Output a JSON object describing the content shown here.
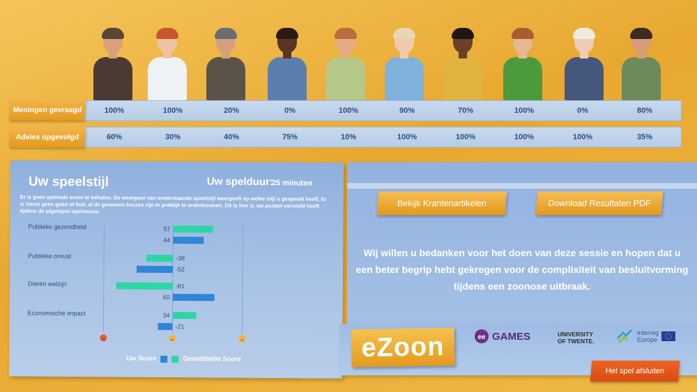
{
  "table": {
    "row1_label": "Meningen gevraagd",
    "row2_label": "Advies opgevolgd",
    "opinions": [
      "100%",
      "100%",
      "20%",
      "0%",
      "100%",
      "90%",
      "70%",
      "100%",
      "0%",
      "80%"
    ],
    "advice": [
      "60%",
      "30%",
      "40%",
      "75%",
      "10%",
      "100%",
      "100%",
      "100%",
      "100%",
      "35%"
    ]
  },
  "characters": [
    {
      "name": "character-politician",
      "skin": "#d9a07a",
      "hair": "#5a4636",
      "top": "#4a3a33"
    },
    {
      "name": "character-doctor",
      "skin": "#f0c2a4",
      "hair": "#c9552e",
      "top": "#eef2f4"
    },
    {
      "name": "character-farmer-chicken",
      "skin": "#d7a07c",
      "hair": "#6b6d72",
      "top": "#5c5348"
    },
    {
      "name": "character-woman-denim",
      "skin": "#5a3425",
      "hair": "#2a1a14",
      "top": "#5a7fae"
    },
    {
      "name": "character-man-green-jacket",
      "skin": "#e2ac84",
      "hair": "#b96d3a",
      "top": "#b6c98a"
    },
    {
      "name": "character-woman-blue-sweater",
      "skin": "#f1c9ae",
      "hair": "#e8d5b2",
      "top": "#7fb1dc"
    },
    {
      "name": "character-farmer-overalls",
      "skin": "#6b4028",
      "hair": "#1f1712",
      "top": "#e0b440"
    },
    {
      "name": "character-man-green-sweater",
      "skin": "#e6b894",
      "hair": "#a85e32",
      "top": "#4d9a3c"
    },
    {
      "name": "character-woman-blazer",
      "skin": "#efcbb3",
      "hair": "#eeeae0",
      "top": "#46577c"
    },
    {
      "name": "character-man-beard",
      "skin": "#d59e77",
      "hair": "#3b2b20",
      "top": "#6e8a5a"
    }
  ],
  "playstyle": {
    "title": "Uw speelstijl",
    "duration_label": "Uw spelduur:",
    "duration_value": "25 minuten",
    "description": "Er is geen optimale score te behalen. De weergave van onderstaande speelstijl weergeeft op welke stijl u gespeeld heeft. Er is hierin geen goed of fout, al de genomen keuzes zijn in praktijk te onderbouwen. Dit is hoe U, uw punten verveeld heeft tijdens de afgelopen spelsessie:"
  },
  "chart_data": {
    "type": "bar",
    "orientation": "horizontal",
    "categories": [
      "Publieke gezondheid",
      "Publieke onrust",
      "Dieren welzijn",
      "Economische impact"
    ],
    "series": [
      {
        "name": "Gemiddelde Score",
        "values": [
          57,
          -38,
          -81,
          34
        ],
        "color": "#2ed6a6"
      },
      {
        "name": "Uw Score",
        "values": [
          44,
          -52,
          60,
          -21
        ],
        "color": "#2f86d6"
      }
    ],
    "xlim": [
      -100,
      100
    ],
    "axis_markers": [
      "negative-face-icon",
      "neutral-face-icon",
      "positive-face-icon"
    ],
    "legend_order": [
      "Uw Score",
      "Gemiddelde Score"
    ]
  },
  "actions": {
    "news_button": "Bekijk Krantenartikelen",
    "download_button": "Download Resultaten PDF",
    "thanks": "Wij willen u bedanken voor het doen van deze sessie en hopen dat u een beter begrip hebt gekregen voor de complixiteit van besluitvorming tijdens een zoonose uitbraak.",
    "exit_button": "Het spel afsluiten"
  },
  "logos": {
    "ezoon": "eZoon",
    "games": "GAMES",
    "twente_line1": "UNIVERSITY",
    "twente_line2": "OF TWENTE.",
    "interreg_line1": "Interreg",
    "interreg_line2": "Europe"
  }
}
